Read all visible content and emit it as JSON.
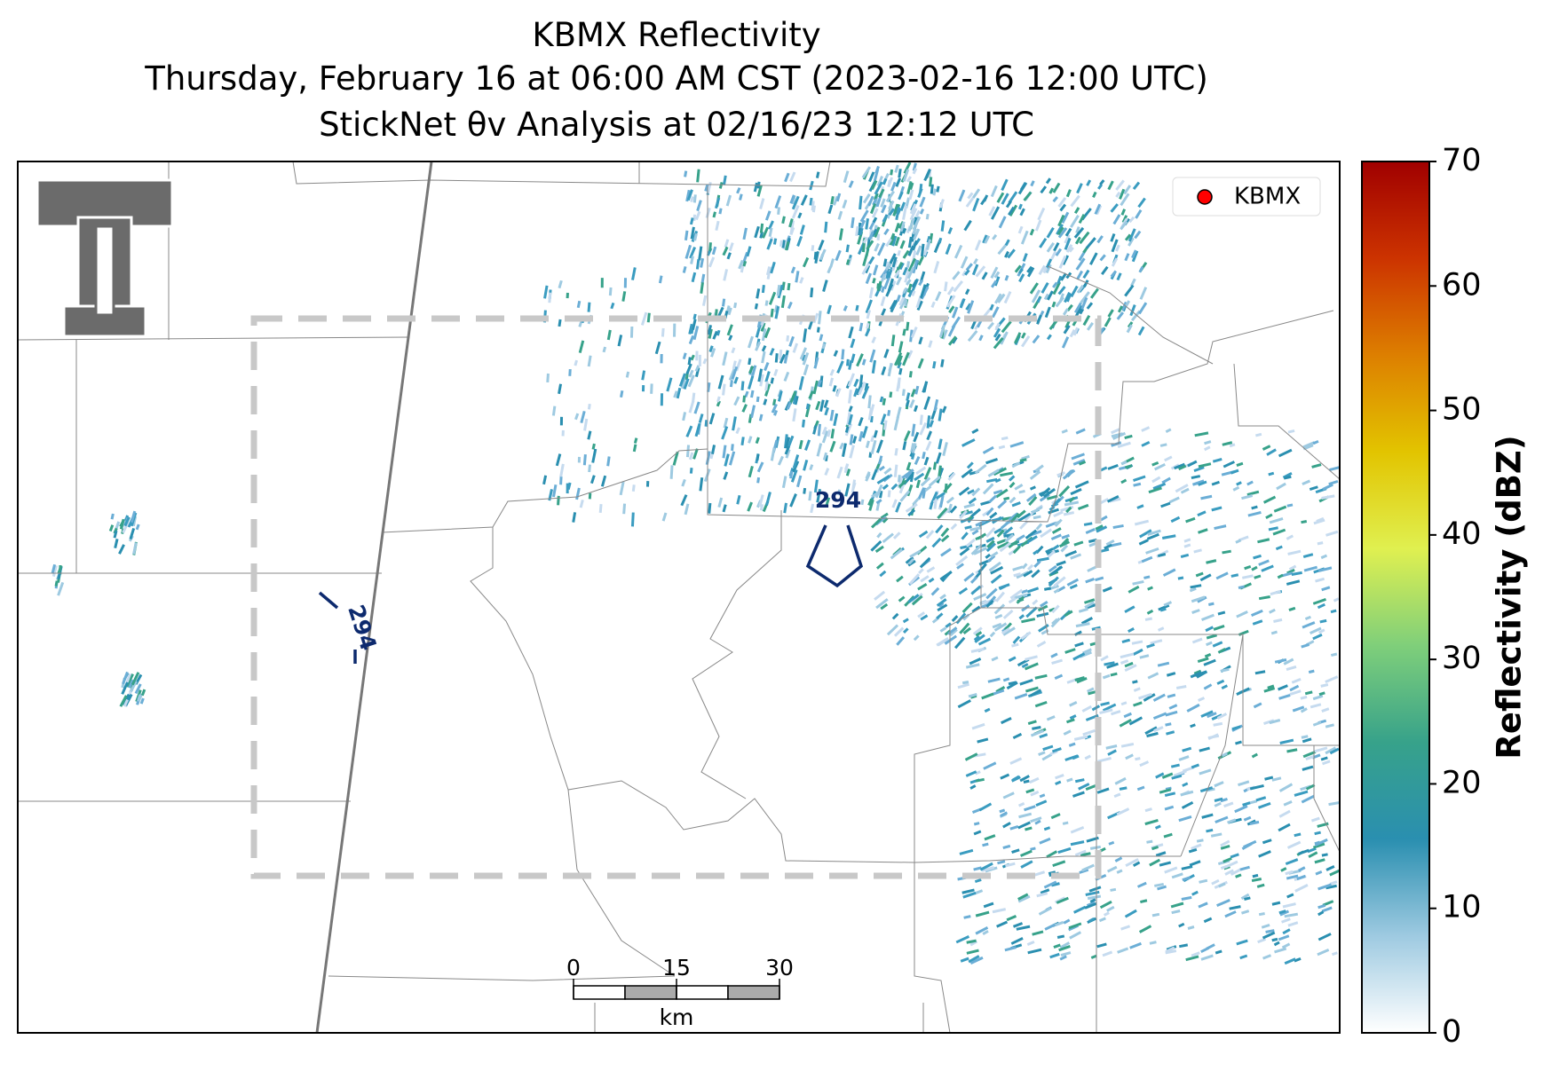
{
  "chart_data": {
    "type": "radar-map",
    "title": [
      "KBMX Reflectivity",
      "Thursday, February 16 at 06:00 AM CST (2023-02-16 12:00 UTC)",
      "StickNet θv Analysis at 02/16/23 12:12 UTC"
    ],
    "legend": {
      "label": "KBMX",
      "color": "#ff0000"
    },
    "contour_labels": [
      "294",
      "294"
    ],
    "colorbar": {
      "label": "Reflectivity (dBZ)",
      "lim": [
        0,
        70
      ],
      "ticks": [
        0,
        10,
        20,
        30,
        40,
        50,
        60,
        70
      ],
      "colors": [
        "#ffffff",
        "#9ecae1",
        "#2a8fb0",
        "#37a28a",
        "#7fcf7a",
        "#e0f050",
        "#e2c400",
        "#dd7f00",
        "#cc3300",
        "#a00000"
      ]
    },
    "scale_bar": {
      "ticks": [
        0,
        15,
        30
      ],
      "unit": "km"
    }
  }
}
